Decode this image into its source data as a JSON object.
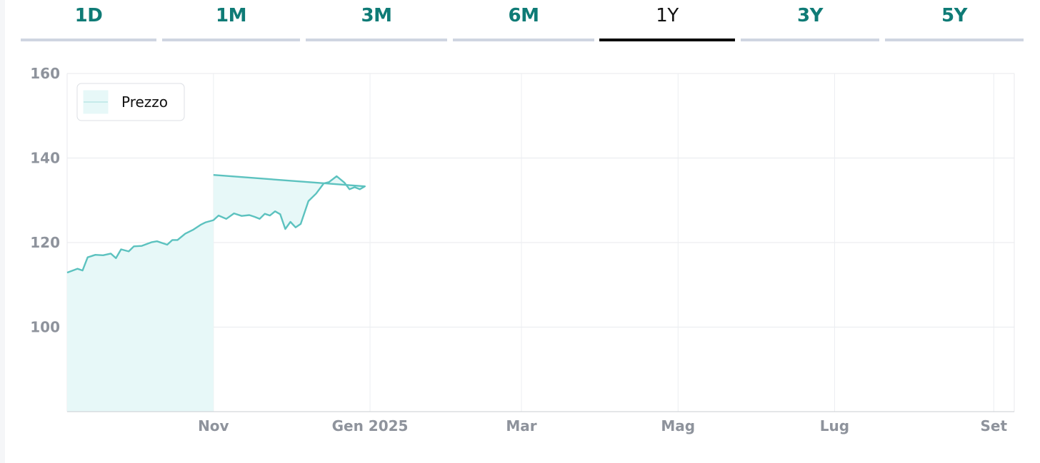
{
  "tabs": [
    {
      "label": "1D",
      "active": false
    },
    {
      "label": "1M",
      "active": false
    },
    {
      "label": "3M",
      "active": false
    },
    {
      "label": "6M",
      "active": false
    },
    {
      "label": "1Y",
      "active": true
    },
    {
      "label": "3Y",
      "active": false
    },
    {
      "label": "5Y",
      "active": false
    }
  ],
  "colors": {
    "accent": "#0f7b76",
    "series_line": "#5cc2bf",
    "series_fill": "#e7f8f8",
    "axis_text": "#8e939c",
    "active_tab_underline": "#000000"
  },
  "chart_data": {
    "type": "area",
    "title": "",
    "xlabel": "",
    "ylabel": "",
    "ylim": [
      80,
      160
    ],
    "y_ticks": [
      100,
      120,
      140,
      160
    ],
    "grid": true,
    "legend_position": "top-left",
    "x_tick_labels": [
      {
        "label": "Nov",
        "date": "2024-11-01"
      },
      {
        "label": "Gen 2025",
        "date": "2025-01-01"
      },
      {
        "label": "Mar",
        "date": "2025-03-01"
      },
      {
        "label": "Mag",
        "date": "2025-05-01"
      },
      {
        "label": "Lug",
        "date": "2025-07-01"
      },
      {
        "label": "Set",
        "date": "2025-09-01"
      }
    ],
    "series": [
      {
        "name": "Prezzo",
        "points": [
          {
            "x": "2024-09-05",
            "y": 112.9
          },
          {
            "x": "2024-09-09",
            "y": 113.8
          },
          {
            "x": "2024-09-11",
            "y": 113.4
          },
          {
            "x": "2024-09-13",
            "y": 116.5
          },
          {
            "x": "2024-09-16",
            "y": 117.1
          },
          {
            "x": "2024-09-19",
            "y": 117.0
          },
          {
            "x": "2024-09-22",
            "y": 117.4
          },
          {
            "x": "2024-09-24",
            "y": 116.3
          },
          {
            "x": "2024-09-26",
            "y": 118.4
          },
          {
            "x": "2024-09-29",
            "y": 117.9
          },
          {
            "x": "2024-10-01",
            "y": 119.1
          },
          {
            "x": "2024-10-04",
            "y": 119.2
          },
          {
            "x": "2024-10-08",
            "y": 120.1
          },
          {
            "x": "2024-10-10",
            "y": 120.3
          },
          {
            "x": "2024-10-14",
            "y": 119.5
          },
          {
            "x": "2024-10-16",
            "y": 120.6
          },
          {
            "x": "2024-10-18",
            "y": 120.6
          },
          {
            "x": "2024-10-21",
            "y": 122.1
          },
          {
            "x": "2024-10-24",
            "y": 123.0
          },
          {
            "x": "2024-10-27",
            "y": 124.2
          },
          {
            "x": "2024-10-29",
            "y": 124.8
          },
          {
            "x": "2024-11-01",
            "y": 125.3
          },
          {
            "x": "2024-11-03",
            "y": 126.4
          },
          {
            "x": "2024-11-06",
            "y": 125.6
          },
          {
            "x": "2024-11-09",
            "y": 126.9
          },
          {
            "x": "2024-11-12",
            "y": 126.3
          },
          {
            "x": "2024-11-15",
            "y": 126.5
          },
          {
            "x": "2024-11-17",
            "y": 126.1
          },
          {
            "x": "2024-11-19",
            "y": 125.6
          },
          {
            "x": "2024-11-21",
            "y": 126.8
          },
          {
            "x": "2024-11-23",
            "y": 126.4
          },
          {
            "x": "2024-11-25",
            "y": 127.4
          },
          {
            "x": "2024-11-27",
            "y": 126.7
          },
          {
            "x": "2024-11-29",
            "y": 123.2
          },
          {
            "x": "2024-12-01",
            "y": 124.9
          },
          {
            "x": "2024-12-03",
            "y": 123.6
          },
          {
            "x": "2024-12-05",
            "y": 124.4
          },
          {
            "x": "2024-12-08",
            "y": 129.8
          },
          {
            "x": "2024-12-11",
            "y": 131.6
          },
          {
            "x": "2024-12-14",
            "y": 134.0
          },
          {
            "x": "2024-12-16",
            "y": 134.3
          },
          {
            "x": "2024-12-19",
            "y": 135.7
          },
          {
            "x": "2024-12-22",
            "y": 134.2
          },
          {
            "x": "2024-12-24",
            "y": 132.6
          },
          {
            "x": "2024-12-26",
            "y": 133.1
          },
          {
            "x": "2024-12-28",
            "y": 132.6
          },
          {
            "x": "2024-12-30",
            "y": 133.3
          },
          {
            "x": "2024-11-01",
            "y": 136.0
          }
        ]
      }
    ]
  }
}
